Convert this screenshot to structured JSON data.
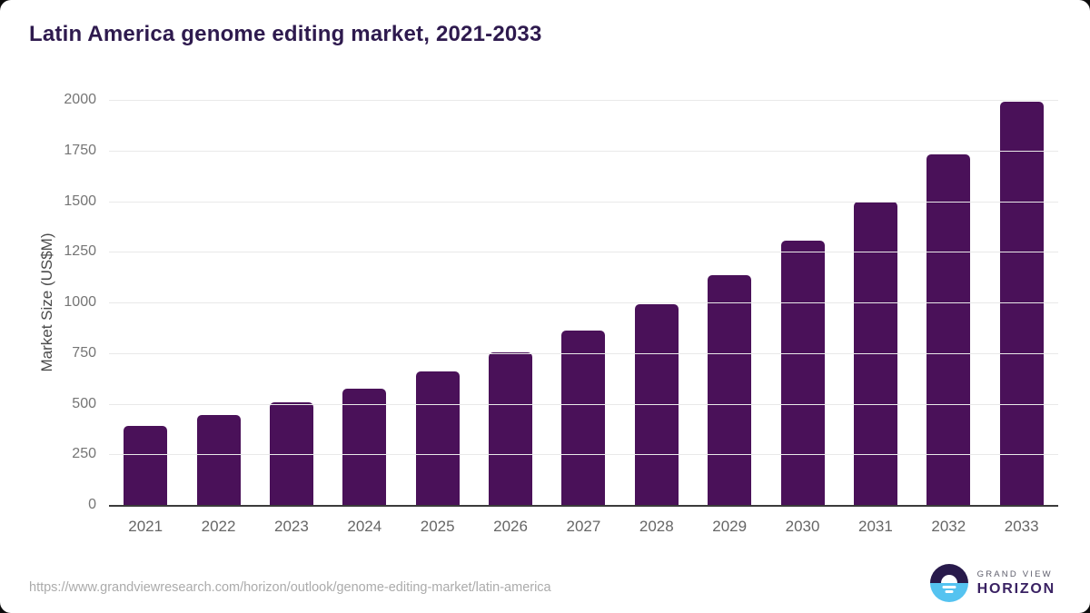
{
  "title": "Latin America genome editing market, 2021-2033",
  "source": {
    "url": "https://www.grandviewresearch.com/horizon/outlook/genome-editing-market/latin-america"
  },
  "logo": {
    "top_text": "GRAND VIEW",
    "bottom_text": "HORIZON",
    "icon": "sun-over-horizon-icon"
  },
  "colors": {
    "bar": "#4a1159",
    "title": "#2e1a4e",
    "axis": "#3b3b3b",
    "gridline": "#e9e9e9",
    "tick_label": "#757575",
    "logo_dark": "#281a4b",
    "logo_blue": "#55c3f0"
  },
  "chart_data": {
    "type": "bar",
    "title": "Latin America genome editing market, 2021-2033",
    "categories": [
      "2021",
      "2022",
      "2023",
      "2024",
      "2025",
      "2026",
      "2027",
      "2028",
      "2029",
      "2030",
      "2031",
      "2032",
      "2033"
    ],
    "values": [
      388,
      443,
      505,
      576,
      658,
      753,
      862,
      990,
      1133,
      1303,
      1500,
      1730,
      1990
    ],
    "xlabel": "",
    "ylabel": "Market Size (US$M)",
    "ylim": [
      0,
      2000
    ],
    "yticks": [
      0,
      250,
      500,
      750,
      1000,
      1250,
      1500,
      1750,
      2000
    ],
    "grid": true,
    "legend": false,
    "bar_color": "#4a1159"
  }
}
